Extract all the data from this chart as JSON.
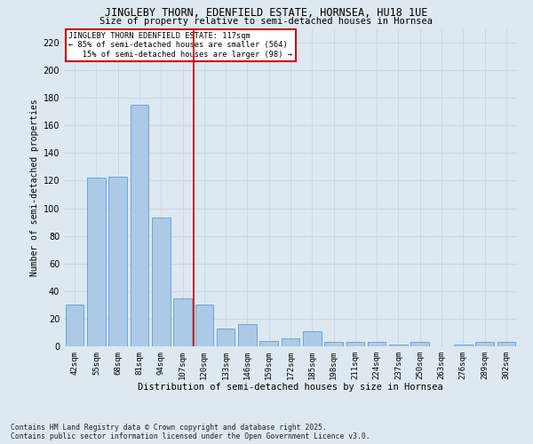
{
  "title1": "JINGLEBY THORN, EDENFIELD ESTATE, HORNSEA, HU18 1UE",
  "title2": "Size of property relative to semi-detached houses in Hornsea",
  "xlabel": "Distribution of semi-detached houses by size in Hornsea",
  "ylabel": "Number of semi-detached properties",
  "categories": [
    "42sqm",
    "55sqm",
    "68sqm",
    "81sqm",
    "94sqm",
    "107sqm",
    "120sqm",
    "133sqm",
    "146sqm",
    "159sqm",
    "172sqm",
    "185sqm",
    "198sqm",
    "211sqm",
    "224sqm",
    "237sqm",
    "250sqm",
    "263sqm",
    "276sqm",
    "289sqm",
    "302sqm"
  ],
  "values": [
    30,
    122,
    123,
    175,
    93,
    35,
    30,
    13,
    16,
    4,
    6,
    11,
    3,
    3,
    3,
    1,
    3,
    0,
    1,
    3,
    3
  ],
  "bar_color": "#adc9e8",
  "bar_edge_color": "#5a9fd4",
  "vline_color": "#cc0000",
  "annotation_text": "JINGLEBY THORN EDENFIELD ESTATE: 117sqm\n← 85% of semi-detached houses are smaller (564)\n   15% of semi-detached houses are larger (98) →",
  "annotation_box_color": "#ffffff",
  "annotation_box_edge_color": "#cc0000",
  "grid_color": "#c8d8e8",
  "background_color": "#dde8f0",
  "ylim": [
    0,
    230
  ],
  "yticks": [
    0,
    20,
    40,
    60,
    80,
    100,
    120,
    140,
    160,
    180,
    200,
    220
  ],
  "footer": "Contains HM Land Registry data © Crown copyright and database right 2025.\nContains public sector information licensed under the Open Government Licence v3.0."
}
